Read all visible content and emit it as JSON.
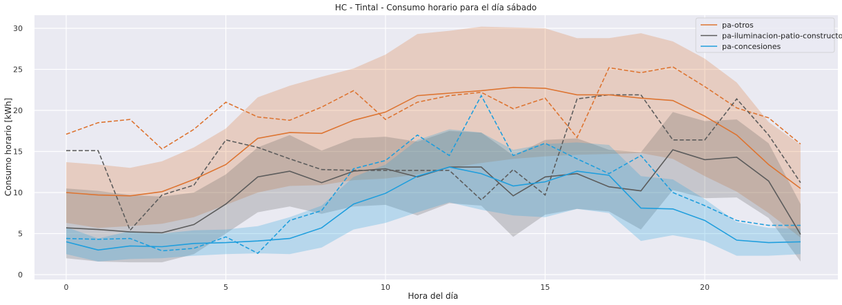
{
  "chart_data": {
    "type": "line",
    "title": "HC - Tintal - Consumo horario para el día sábado",
    "xlabel": "Hora del día",
    "ylabel": "Consumo horario [kWh]",
    "xlim": [
      -1,
      24
    ],
    "ylim": [
      0,
      31.5
    ],
    "xticks": [
      0,
      5,
      10,
      15,
      20
    ],
    "yticks": [
      0,
      5,
      10,
      15,
      20,
      25,
      30
    ],
    "grid": true,
    "legend_position": "top-right",
    "x": [
      0,
      1,
      2,
      3,
      4,
      5,
      6,
      7,
      8,
      9,
      10,
      11,
      12,
      13,
      14,
      15,
      16,
      17,
      18,
      19,
      20,
      21,
      22,
      23
    ],
    "series": [
      {
        "name": "pa-otros",
        "color": "#dd7431",
        "mean": [
          10.0,
          9.7,
          9.6,
          10.1,
          11.6,
          13.4,
          16.6,
          17.3,
          17.2,
          18.8,
          19.8,
          21.8,
          22.1,
          22.4,
          22.8,
          22.7,
          21.9,
          21.9,
          21.5,
          21.2,
          19.3,
          17.0,
          13.4,
          10.5
        ],
        "lower": [
          6.3,
          5.7,
          5.9,
          6.2,
          7.0,
          8.5,
          10.0,
          10.8,
          10.9,
          11.5,
          11.7,
          12.2,
          13.0,
          13.6,
          14.1,
          14.4,
          14.6,
          14.7,
          14.8,
          14.1,
          12.0,
          10.1,
          7.5,
          4.5
        ],
        "upper": [
          13.7,
          13.4,
          13.0,
          13.8,
          15.5,
          17.8,
          21.6,
          23.0,
          24.1,
          25.1,
          26.8,
          29.3,
          29.7,
          30.2,
          30.1,
          30.0,
          28.8,
          28.8,
          29.4,
          28.4,
          26.3,
          23.4,
          18.6,
          15.8
        ]
      },
      {
        "name": "pa-iluminacion-patio-constructor",
        "color": "#5c5c5c",
        "mean": [
          5.7,
          5.5,
          5.2,
          5.1,
          6.1,
          8.6,
          11.9,
          12.6,
          11.2,
          12.6,
          12.9,
          11.9,
          13.1,
          13.1,
          9.6,
          11.9,
          12.3,
          10.7,
          10.2,
          15.2,
          14.0,
          14.3,
          11.4,
          4.9
        ],
        "lower": [
          2.0,
          1.6,
          1.5,
          1.5,
          2.5,
          5.0,
          7.6,
          8.3,
          7.4,
          8.3,
          8.5,
          7.2,
          8.7,
          8.4,
          4.6,
          7.3,
          8.0,
          7.7,
          5.5,
          10.3,
          9.3,
          9.4,
          6.9,
          1.6
        ],
        "upper": [
          10.5,
          10.2,
          9.7,
          9.5,
          10.0,
          12.2,
          15.5,
          17.0,
          15.1,
          16.6,
          16.8,
          16.2,
          17.5,
          17.3,
          14.5,
          16.4,
          16.6,
          15.2,
          14.9,
          19.8,
          18.7,
          18.9,
          16.0,
          8.6
        ]
      },
      {
        "name": "pa-concesiones",
        "color": "#1f9edd",
        "mean": [
          4.0,
          3.0,
          3.5,
          3.4,
          3.8,
          3.9,
          4.1,
          4.4,
          5.7,
          8.6,
          9.9,
          12.0,
          13.1,
          12.3,
          10.8,
          11.3,
          12.6,
          12.1,
          8.1,
          8.0,
          6.6,
          4.2,
          3.9,
          4.0
        ],
        "lower": [
          2.5,
          1.6,
          1.9,
          2.0,
          2.3,
          2.5,
          2.6,
          2.5,
          3.3,
          5.5,
          6.3,
          7.6,
          8.8,
          7.9,
          7.2,
          7.0,
          8.0,
          7.5,
          4.1,
          4.8,
          4.1,
          2.3,
          2.3,
          2.5
        ],
        "upper": [
          5.8,
          4.4,
          5.3,
          5.0,
          5.4,
          5.5,
          5.9,
          7.0,
          8.4,
          11.9,
          13.4,
          16.4,
          17.7,
          17.3,
          15.2,
          15.9,
          16.1,
          15.8,
          12.0,
          11.6,
          9.2,
          6.4,
          5.7,
          5.6
        ]
      }
    ],
    "dashed_series": [
      {
        "color": "#dd7431",
        "values": [
          17.1,
          18.5,
          18.9,
          15.3,
          17.7,
          21.0,
          19.2,
          18.8,
          20.4,
          22.4,
          18.9,
          21.0,
          21.8,
          22.2,
          20.2,
          21.5,
          16.7,
          25.2,
          24.6,
          25.3,
          22.9,
          20.3,
          19.1,
          15.9
        ]
      },
      {
        "color": "#5c5c5c",
        "values": [
          15.1,
          15.1,
          5.4,
          9.7,
          10.9,
          16.4,
          15.5,
          14.1,
          12.8,
          12.7,
          12.7,
          12.7,
          12.7,
          9.1,
          12.8,
          9.7,
          21.4,
          21.9,
          21.9,
          16.4,
          16.4,
          21.4,
          17.0,
          11.2
        ]
      },
      {
        "color": "#1f9edd",
        "values": [
          4.4,
          4.3,
          4.4,
          2.9,
          3.2,
          4.6,
          2.6,
          6.6,
          7.8,
          12.9,
          13.9,
          17.0,
          14.5,
          21.8,
          14.5,
          16.0,
          14.1,
          12.3,
          14.5,
          10.0,
          8.4,
          6.6,
          6.0,
          6.0
        ]
      }
    ]
  }
}
